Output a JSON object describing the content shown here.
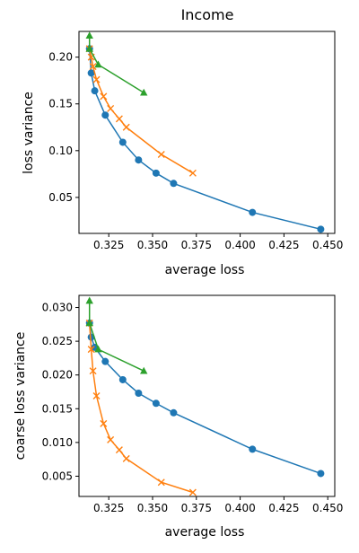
{
  "figure_title": "Income",
  "colors": {
    "series1": "#1f77b4",
    "series2": "#ff7f0e",
    "series3": "#2ca02c"
  },
  "chart_data": [
    {
      "type": "line",
      "title": "Income",
      "xlabel": "average loss",
      "ylabel": "loss variance",
      "xlim": [
        0.308,
        0.454
      ],
      "ylim": [
        0.0115,
        0.2275
      ],
      "xticks": [
        0.325,
        0.35,
        0.375,
        0.4,
        0.425,
        0.45
      ],
      "xtick_labels": [
        "0.325",
        "0.350",
        "0.375",
        "0.400",
        "0.425",
        "0.450"
      ],
      "yticks": [
        0.05,
        0.1,
        0.15,
        0.2
      ],
      "ytick_labels": [
        "0.05",
        "0.10",
        "0.15",
        "0.20"
      ],
      "grid": false,
      "series": [
        {
          "marker": "circle",
          "color": "#1f77b4",
          "x": [
            0.314,
            0.315,
            0.317,
            0.323,
            0.333,
            0.342,
            0.352,
            0.362,
            0.407,
            0.446
          ],
          "y": [
            0.209,
            0.183,
            0.164,
            0.138,
            0.109,
            0.09,
            0.076,
            0.065,
            0.034,
            0.016
          ]
        },
        {
          "marker": "x",
          "color": "#ff7f0e",
          "x": [
            0.314,
            0.315,
            0.316,
            0.318,
            0.322,
            0.326,
            0.331,
            0.335,
            0.355,
            0.373
          ],
          "y": [
            0.209,
            0.2,
            0.19,
            0.176,
            0.158,
            0.145,
            0.134,
            0.125,
            0.096,
            0.076
          ]
        },
        {
          "marker": "triangle",
          "color": "#2ca02c",
          "x": [
            0.314,
            0.314,
            0.319,
            0.345
          ],
          "y": [
            0.223,
            0.209,
            0.192,
            0.162
          ]
        }
      ]
    },
    {
      "type": "line",
      "title": "",
      "xlabel": "average loss",
      "ylabel": "coarse loss variance",
      "xlim": [
        0.308,
        0.454
      ],
      "ylim": [
        0.002,
        0.0318
      ],
      "xticks": [
        0.325,
        0.35,
        0.375,
        0.4,
        0.425,
        0.45
      ],
      "xtick_labels": [
        "0.325",
        "0.350",
        "0.375",
        "0.400",
        "0.425",
        "0.450"
      ],
      "yticks": [
        0.005,
        0.01,
        0.015,
        0.02,
        0.025,
        0.03
      ],
      "ytick_labels": [
        "0.005",
        "0.010",
        "0.015",
        "0.020",
        "0.025",
        "0.030"
      ],
      "grid": false,
      "series": [
        {
          "marker": "circle",
          "color": "#1f77b4",
          "x": [
            0.314,
            0.315,
            0.317,
            0.323,
            0.333,
            0.342,
            0.352,
            0.362,
            0.407,
            0.446
          ],
          "y": [
            0.0277,
            0.0256,
            0.0241,
            0.022,
            0.0193,
            0.0173,
            0.0158,
            0.0144,
            0.009,
            0.0054
          ]
        },
        {
          "marker": "x",
          "color": "#ff7f0e",
          "x": [
            0.314,
            0.315,
            0.316,
            0.318,
            0.322,
            0.326,
            0.331,
            0.335,
            0.355,
            0.373
          ],
          "y": [
            0.0277,
            0.0238,
            0.0206,
            0.0169,
            0.0128,
            0.0104,
            0.0089,
            0.0076,
            0.0041,
            0.0026
          ]
        },
        {
          "marker": "triangle",
          "color": "#2ca02c",
          "x": [
            0.314,
            0.314,
            0.319,
            0.345
          ],
          "y": [
            0.031,
            0.0277,
            0.0238,
            0.0206
          ]
        }
      ]
    }
  ]
}
